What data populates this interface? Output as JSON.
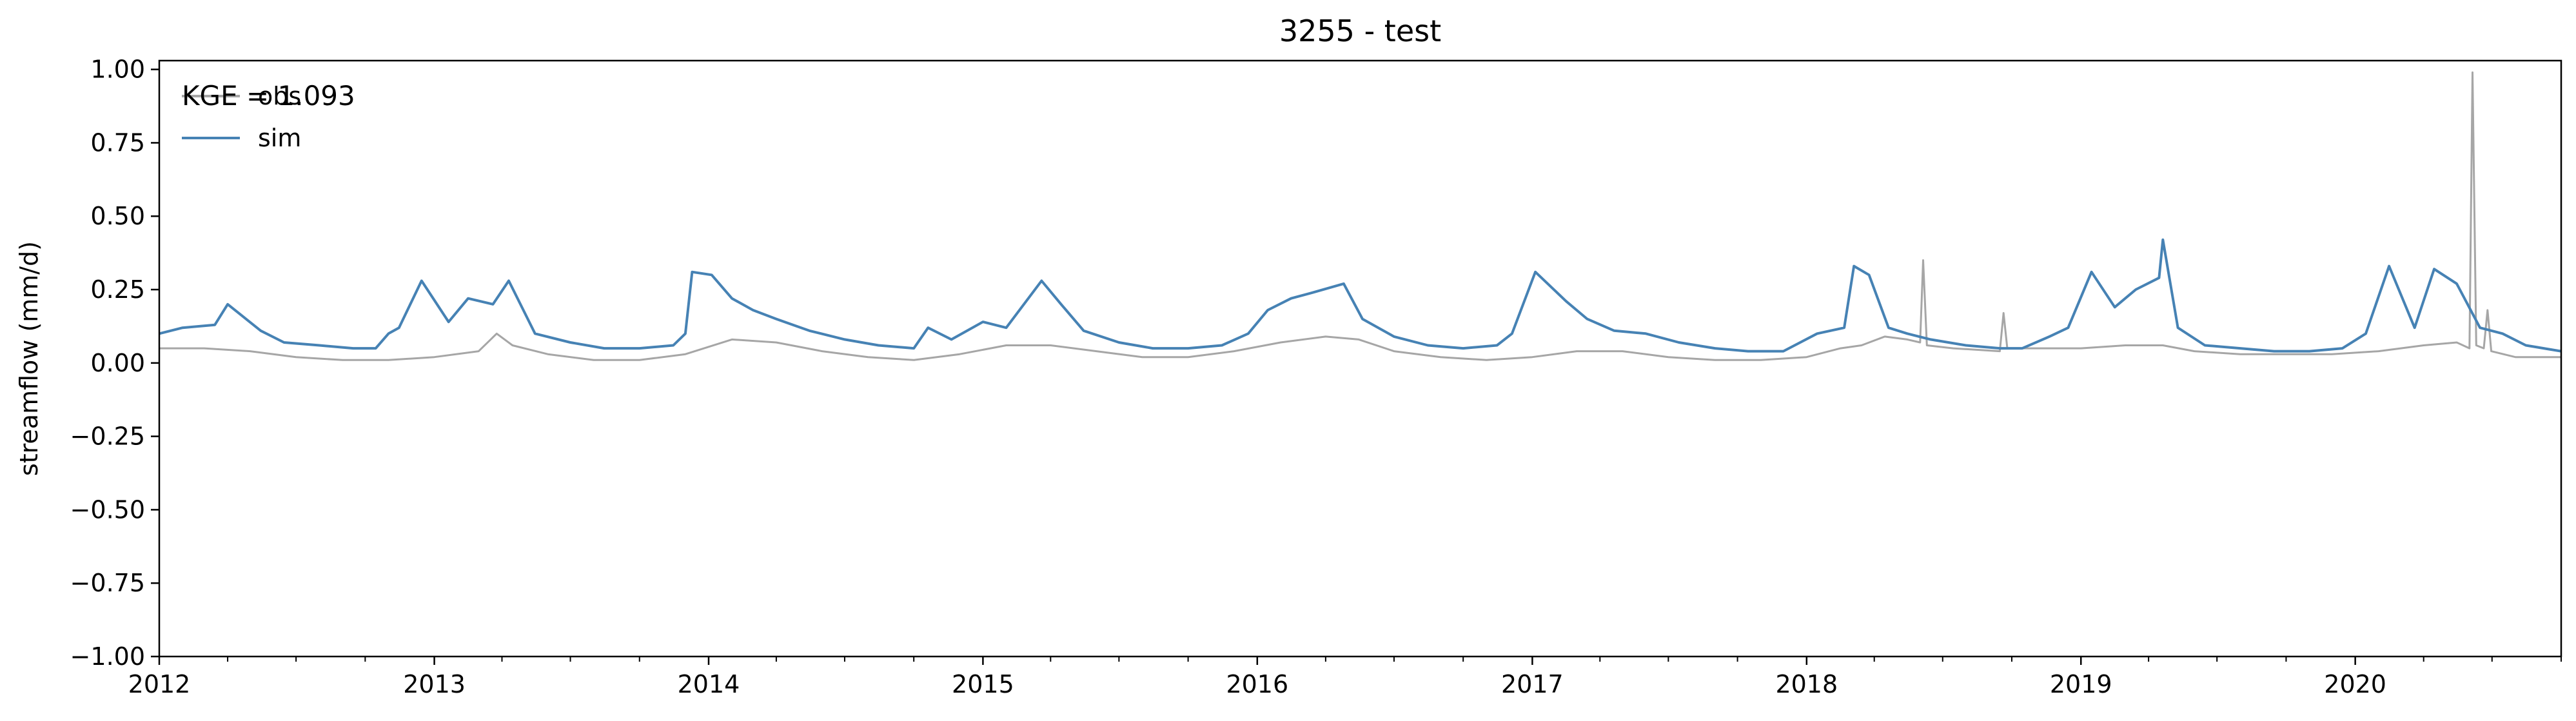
{
  "chart_data": {
    "type": "line",
    "title": "3255 - test",
    "xlabel": "",
    "ylabel": "streamflow (mm/d)",
    "xlim": [
      "2012-01-01",
      "2020-10-01"
    ],
    "ylim": [
      -1.0,
      1.03
    ],
    "x_ticks": [
      "2012",
      "2013",
      "2014",
      "2015",
      "2016",
      "2017",
      "2018",
      "2019",
      "2020"
    ],
    "y_ticks": [
      "−1.00",
      "−0.75",
      "−0.50",
      "−0.25",
      "0.00",
      "0.25",
      "0.50",
      "0.75",
      "1.00"
    ],
    "grid": false,
    "legend": "top-left",
    "metric_annotation": "KGE = 1.093",
    "series": [
      {
        "name": "obs",
        "color": "#a6a6a6",
        "x": [
          "2012-01-01",
          "2012-03-01",
          "2012-05-01",
          "2012-07-01",
          "2012-09-01",
          "2012-11-01",
          "2013-01-01",
          "2013-03-01",
          "2013-03-25",
          "2013-04-15",
          "2013-06-01",
          "2013-08-01",
          "2013-10-01",
          "2013-12-01",
          "2014-02-01",
          "2014-04-01",
          "2014-06-01",
          "2014-08-01",
          "2014-10-01",
          "2014-12-01",
          "2015-02-01",
          "2015-04-01",
          "2015-06-01",
          "2015-08-01",
          "2015-10-01",
          "2015-12-01",
          "2016-02-01",
          "2016-04-01",
          "2016-05-15",
          "2016-07-01",
          "2016-09-01",
          "2016-11-01",
          "2017-01-01",
          "2017-03-01",
          "2017-05-01",
          "2017-07-01",
          "2017-09-01",
          "2017-11-01",
          "2018-01-01",
          "2018-02-15",
          "2018-03-15",
          "2018-04-15",
          "2018-05-15",
          "2018-06-01",
          "2018-06-05",
          "2018-06-10",
          "2018-07-15",
          "2018-09-15",
          "2018-09-20",
          "2018-09-25",
          "2018-11-01",
          "2019-01-01",
          "2019-03-01",
          "2019-04-20",
          "2019-06-01",
          "2019-08-01",
          "2019-10-01",
          "2019-12-01",
          "2020-02-01",
          "2020-04-01",
          "2020-05-15",
          "2020-06-01",
          "2020-06-05",
          "2020-06-10",
          "2020-06-20",
          "2020-06-25",
          "2020-06-30",
          "2020-08-01",
          "2020-10-01"
        ],
        "values": [
          0.05,
          0.05,
          0.04,
          0.02,
          0.01,
          0.01,
          0.02,
          0.04,
          0.1,
          0.06,
          0.03,
          0.01,
          0.01,
          0.03,
          0.08,
          0.07,
          0.04,
          0.02,
          0.01,
          0.03,
          0.06,
          0.06,
          0.04,
          0.02,
          0.02,
          0.04,
          0.07,
          0.09,
          0.08,
          0.04,
          0.02,
          0.01,
          0.02,
          0.04,
          0.04,
          0.02,
          0.01,
          0.01,
          0.02,
          0.05,
          0.06,
          0.09,
          0.08,
          0.07,
          0.35,
          0.06,
          0.05,
          0.04,
          0.17,
          0.05,
          0.05,
          0.05,
          0.06,
          0.06,
          0.04,
          0.03,
          0.03,
          0.03,
          0.04,
          0.06,
          0.07,
          0.05,
          0.99,
          0.06,
          0.05,
          0.18,
          0.04,
          0.02,
          0.02
        ]
      },
      {
        "name": "sim",
        "color": "#4682b4",
        "x": [
          "2012-01-01",
          "2012-02-01",
          "2012-03-15",
          "2012-04-01",
          "2012-05-15",
          "2012-06-15",
          "2012-08-01",
          "2012-09-15",
          "2012-10-15",
          "2012-11-01",
          "2012-11-15",
          "2012-12-15",
          "2013-01-20",
          "2013-02-15",
          "2013-03-20",
          "2013-04-10",
          "2013-05-15",
          "2013-07-01",
          "2013-08-15",
          "2013-10-01",
          "2013-11-15",
          "2013-12-01",
          "2013-12-10",
          "2014-01-05",
          "2014-02-01",
          "2014-03-01",
          "2014-04-01",
          "2014-05-15",
          "2014-07-01",
          "2014-08-15",
          "2014-10-01",
          "2014-10-20",
          "2014-11-20",
          "2015-01-01",
          "2015-02-01",
          "2015-03-20",
          "2015-04-15",
          "2015-05-15",
          "2015-07-01",
          "2015-08-15",
          "2015-10-01",
          "2015-11-15",
          "2015-12-20",
          "2016-01-15",
          "2016-02-15",
          "2016-03-15",
          "2016-04-25",
          "2016-05-20",
          "2016-07-01",
          "2016-08-15",
          "2016-10-01",
          "2016-11-15",
          "2016-12-05",
          "2017-01-05",
          "2017-02-15",
          "2017-03-15",
          "2017-04-20",
          "2017-06-01",
          "2017-07-15",
          "2017-09-01",
          "2017-10-15",
          "2017-12-01",
          "2018-01-15",
          "2018-02-20",
          "2018-03-05",
          "2018-03-25",
          "2018-04-20",
          "2018-05-15",
          "2018-06-15",
          "2018-08-01",
          "2018-09-15",
          "2018-10-15",
          "2018-11-20",
          "2018-12-15",
          "2019-01-15",
          "2019-02-15",
          "2019-03-15",
          "2019-04-15",
          "2019-04-20",
          "2019-05-10",
          "2019-06-15",
          "2019-08-01",
          "2019-09-15",
          "2019-11-01",
          "2019-12-15",
          "2020-01-15",
          "2020-02-15",
          "2020-03-20",
          "2020-04-15",
          "2020-05-15",
          "2020-06-15",
          "2020-07-15",
          "2020-08-15",
          "2020-10-01"
        ],
        "values": [
          0.1,
          0.12,
          0.13,
          0.2,
          0.11,
          0.07,
          0.06,
          0.05,
          0.05,
          0.1,
          0.12,
          0.28,
          0.14,
          0.22,
          0.2,
          0.28,
          0.1,
          0.07,
          0.05,
          0.05,
          0.06,
          0.1,
          0.31,
          0.3,
          0.22,
          0.18,
          0.15,
          0.11,
          0.08,
          0.06,
          0.05,
          0.12,
          0.08,
          0.14,
          0.12,
          0.28,
          0.2,
          0.11,
          0.07,
          0.05,
          0.05,
          0.06,
          0.1,
          0.18,
          0.22,
          0.24,
          0.27,
          0.15,
          0.09,
          0.06,
          0.05,
          0.06,
          0.1,
          0.31,
          0.21,
          0.15,
          0.11,
          0.1,
          0.07,
          0.05,
          0.04,
          0.04,
          0.1,
          0.12,
          0.33,
          0.3,
          0.12,
          0.1,
          0.08,
          0.06,
          0.05,
          0.05,
          0.09,
          0.12,
          0.31,
          0.19,
          0.25,
          0.29,
          0.42,
          0.12,
          0.06,
          0.05,
          0.04,
          0.04,
          0.05,
          0.1,
          0.33,
          0.12,
          0.32,
          0.27,
          0.12,
          0.1,
          0.06,
          0.04
        ]
      }
    ]
  }
}
